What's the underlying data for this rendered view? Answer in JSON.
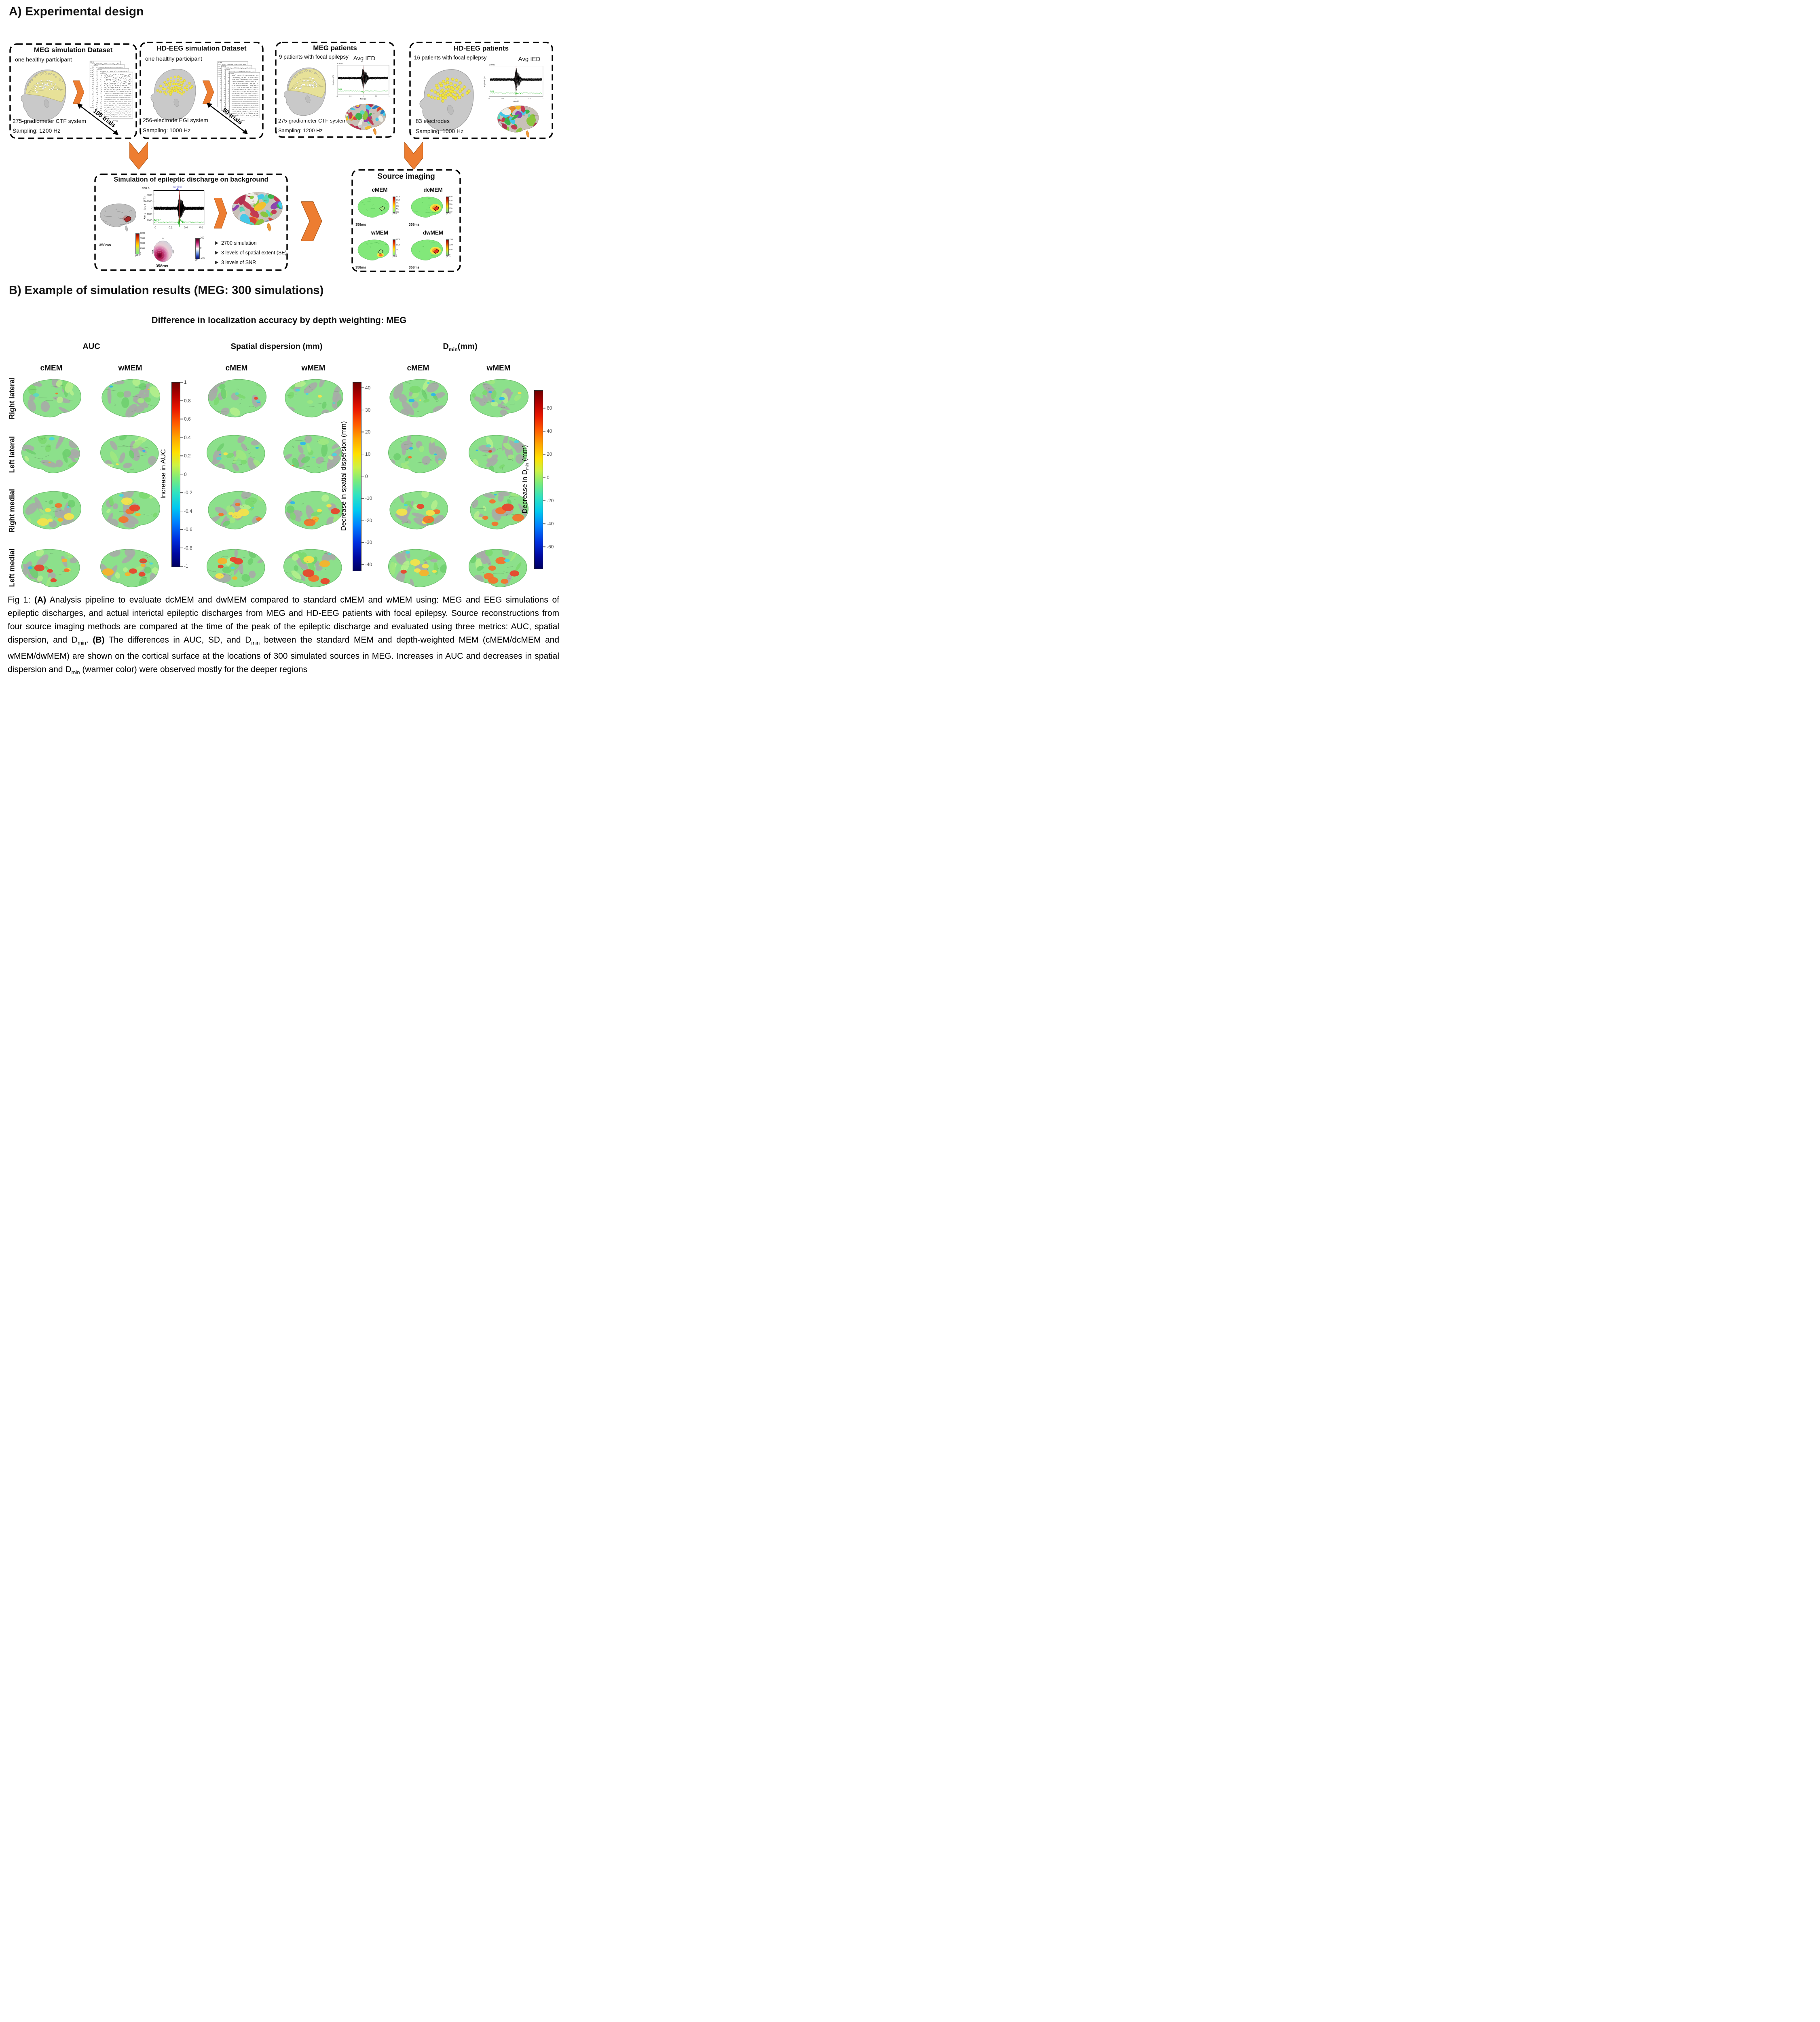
{
  "panel_a": {
    "title": "A) Experimental design",
    "meg_sim": {
      "title": "MEG simulation Dataset",
      "subtitle": "one healthy participant",
      "trials_label": "105 trials",
      "line1": "275-gradiometer CTF system",
      "line2": "Sampling: 1200 Hz",
      "trace_top_label": "0.0 ms",
      "trace_xlabel": "Time (s)",
      "channels": [
        "MLF11",
        "MLF12",
        "MLF13",
        "MLF14",
        "MLF21",
        "MLF22",
        "MLF23"
      ]
    },
    "hdeeg_sim": {
      "title": "HD-EEG simulation Dataset",
      "subtitle": "one healthy participant",
      "trials_label": "50 trials",
      "line1": "256-electrode EGI system",
      "line2": "Sampling: 1000 Hz",
      "trace_top_label": "0.0 ms",
      "trace_xlabel": "Time (s)",
      "channels": [
        "E001",
        "E002",
        "E003",
        "E004",
        "E005",
        "E006",
        "E007"
      ]
    },
    "meg_patients": {
      "title": "MEG patients",
      "subtitle": "9 patients with focal epilepsy",
      "avg_ied_label": "Avg IED",
      "line1": "275-gradiometer CTF system",
      "line2": "Sampling: 1200 Hz",
      "ied_plot": {
        "time_zero": "0.0 ms",
        "gfp": "GFP",
        "xlabel": "Time (s)",
        "ylabel": "Amplitude (fT)"
      }
    },
    "hdeeg_patients": {
      "title": "HD-EEG patients",
      "subtitle": "16 patients with focal epilepsy",
      "avg_ied_label": "Avg IED",
      "line1": "83 electrodes",
      "line2": "Sampling: 1000 Hz",
      "ied_plot": {
        "time_zero": "0.0 ms",
        "gfp": "GFP",
        "xlabel": "Time (s)",
        "ylabel": "Amplitude (fT)"
      }
    },
    "simulation": {
      "title": "Simulation of epileptic discharge on background",
      "time_label": "358ms",
      "topo_time_label": "358ms",
      "plot": {
        "value_label": "358.3",
        "cardiac_label": "cardiac",
        "gfp_label": "GFP",
        "ylabel": "Amplitude (fT)",
        "yticks": [
          "-2000",
          "-1000",
          "0",
          "1000",
          "2000"
        ],
        "xticks": [
          "0",
          "0.2",
          "0.4",
          "0.6"
        ]
      },
      "colorbar_pam": {
        "ticks": [
          "8000",
          "6000",
          "4000",
          "2000",
          "0"
        ],
        "unit": "pA.m"
      },
      "colorbar_ft": {
        "ticks": [
          "200",
          "0",
          "-200"
        ],
        "unit": "fT"
      },
      "bullets": [
        "2700 simulation",
        "3 levels of spatial extent (SE)",
        "3 levels of SNR"
      ]
    },
    "source_imaging": {
      "title": "Source imaging",
      "methods": [
        {
          "name": "cMEM",
          "time": "358ms",
          "cb_ticks": [
            "1200",
            "1000",
            "800",
            "600",
            "400",
            "200"
          ],
          "cb_unit": "pA.m"
        },
        {
          "name": "dcMEM",
          "time": "358ms",
          "cb_ticks": [
            "500",
            "400",
            "300",
            "200",
            "100"
          ],
          "cb_unit": "pA.m"
        },
        {
          "name": "wMEM",
          "time": "358ms",
          "cb_ticks": [
            "1500",
            "1000",
            "500",
            "0"
          ],
          "cb_unit": "pA.m"
        },
        {
          "name": "dwMEM",
          "time": "358ms",
          "cb_ticks": [
            "1500",
            "1000",
            "500",
            "0"
          ],
          "cb_unit": "pA.m"
        }
      ]
    }
  },
  "panel_b": {
    "title": "B) Example of simulation results (MEG: 300 simulations)",
    "subtitle": "Difference in localization accuracy by depth weighting: MEG",
    "metric_runs": [
      [
        {
          "t": "AUC"
        }
      ],
      [
        {
          "t": "Spatial dispersion (mm)"
        }
      ],
      [
        {
          "t": "D"
        },
        {
          "t": "min",
          "sub": true
        },
        {
          "t": "(mm)"
        }
      ]
    ],
    "method_labels": [
      "cMEM",
      "wMEM",
      "cMEM",
      "wMEM",
      "cMEM",
      "wMEM"
    ],
    "row_labels": [
      "Right lateral",
      "Left lateral",
      "Right medial",
      "Left medial"
    ],
    "colorbars": [
      {
        "label_runs": [
          {
            "t": "Increase in AUC"
          }
        ],
        "ticks": [
          "1",
          "0.8",
          "0.6",
          "0.4",
          "0.2",
          "0",
          "-0.2",
          "-0.4",
          "-0.6",
          "-0.8",
          "-1"
        ]
      },
      {
        "label_runs": [
          {
            "t": "Decrease in spatial dispersion (mm)"
          }
        ],
        "ticks": [
          "40",
          "30",
          "20",
          "10",
          "0",
          "-10",
          "-20",
          "-30",
          "-40"
        ]
      },
      {
        "label_runs": [
          {
            "t": "Decrease in D"
          },
          {
            "t": "min",
            "sub": true
          },
          {
            "t": " (mm)"
          }
        ],
        "ticks": [
          "60",
          "40",
          "20",
          "0",
          "-20",
          "-40",
          "-60"
        ]
      }
    ]
  },
  "caption": {
    "runs": [
      {
        "t": "Fig 1: "
      },
      {
        "t": "(A)",
        "b": true
      },
      {
        "t": " Analysis pipeline to evaluate dcMEM and dwMEM compared to standard cMEM and wMEM using: MEG and EEG simulations of epileptic discharges, and actual interictal epileptic discharges from MEG and HD-EEG patients with focal epilepsy. Source reconstructions from four source imaging methods are compared at the time of the peak of the epileptic discharge and evaluated using three metrics: AUC, spatial dispersion, and D"
      },
      {
        "t": "min",
        "sub": true
      },
      {
        "t": ". "
      },
      {
        "t": "(B)",
        "b": true
      },
      {
        "t": " The differences in AUC, SD, and D"
      },
      {
        "t": "min",
        "sub": true
      },
      {
        "t": " between the standard MEM and depth-weighted MEM (cMEM/dcMEM and wMEM/dwMEM) are shown on the cortical surface at the locations of 300 simulated sources in MEG. Increases in AUC and decreases in spatial dispersion and D"
      },
      {
        "t": "min",
        "sub": true
      },
      {
        "t": " (warmer color) were observed mostly for the deeper regions"
      }
    ]
  },
  "colors": {
    "arrow_orange": "#ED7D31",
    "gfp_green": "#1db31d",
    "cardiac_purple": "#8080d8",
    "cap_yellow": "#e9e394",
    "electrode_yellow": "#f3e73a"
  }
}
